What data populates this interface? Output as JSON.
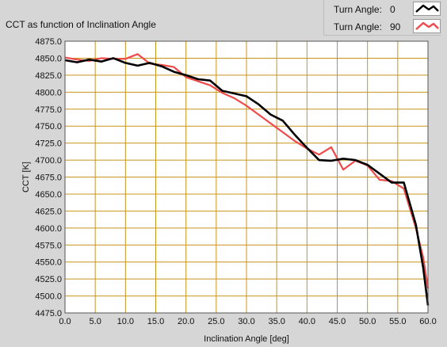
{
  "chart_title": "CCT as function of Inclination Angle",
  "legend": [
    {
      "label": "Turn Angle:",
      "value": "0",
      "color": "#000000"
    },
    {
      "label": "Turn Angle:",
      "value": "90",
      "color": "#ef4a4a"
    }
  ],
  "colors": {
    "plot_bg": "#ffffff",
    "grid": "#c8941e",
    "panel": "#d6d6d6"
  },
  "chart_data": {
    "type": "line",
    "title": "CCT as function of Inclination Angle",
    "xlabel": "Inclination Angle [deg]",
    "ylabel": "CCT [K]",
    "xlim": [
      0,
      60
    ],
    "ylim": [
      4475,
      4875
    ],
    "x_ticks": [
      0,
      5,
      10,
      15,
      20,
      25,
      30,
      35,
      40,
      45,
      50,
      55,
      60
    ],
    "x_tick_labels": [
      "0.0",
      "5.0",
      "10.0",
      "15.0",
      "20.0",
      "25.0",
      "30.0",
      "35.0",
      "40.0",
      "45.0",
      "50.0",
      "55.0",
      "60.0"
    ],
    "y_ticks": [
      4475,
      4500,
      4525,
      4550,
      4575,
      4600,
      4625,
      4650,
      4675,
      4700,
      4725,
      4750,
      4775,
      4800,
      4825,
      4850,
      4875
    ],
    "y_tick_labels": [
      "4475.0",
      "4500.0",
      "4525.0",
      "4550.0",
      "4575.0",
      "4600.0",
      "4625.0",
      "4650.0",
      "4675.0",
      "4700.0",
      "4725.0",
      "4750.0",
      "4775.0",
      "4800.0",
      "4825.0",
      "4850.0",
      "4875.0"
    ],
    "grid": true,
    "legend_position": "top-right",
    "series": [
      {
        "name": "Turn Angle: 0",
        "color": "#000000",
        "points": [
          [
            0,
            4847
          ],
          [
            2,
            4844
          ],
          [
            4,
            4848
          ],
          [
            6,
            4845
          ],
          [
            8,
            4850
          ],
          [
            10,
            4843
          ],
          [
            12,
            4839
          ],
          [
            14,
            4843
          ],
          [
            16,
            4838
          ],
          [
            18,
            4830
          ],
          [
            20,
            4825
          ],
          [
            22,
            4819
          ],
          [
            24,
            4817
          ],
          [
            26,
            4802
          ],
          [
            28,
            4798
          ],
          [
            30,
            4794
          ],
          [
            32,
            4782
          ],
          [
            34,
            4767
          ],
          [
            36,
            4758
          ],
          [
            38,
            4737
          ],
          [
            40,
            4718
          ],
          [
            42,
            4700
          ],
          [
            44,
            4699
          ],
          [
            46,
            4702
          ],
          [
            48,
            4700
          ],
          [
            50,
            4693
          ],
          [
            52,
            4680
          ],
          [
            54,
            4667
          ],
          [
            55,
            4667
          ],
          [
            56,
            4667
          ],
          [
            58,
            4605
          ],
          [
            59.2,
            4542
          ],
          [
            60,
            4486
          ]
        ]
      },
      {
        "name": "Turn Angle: 90",
        "color": "#ef4a4a",
        "points": [
          [
            0,
            4851
          ],
          [
            2,
            4848
          ],
          [
            4,
            4846
          ],
          [
            6,
            4850
          ],
          [
            8,
            4849
          ],
          [
            10,
            4849
          ],
          [
            12,
            4856
          ],
          [
            14,
            4842
          ],
          [
            16,
            4840
          ],
          [
            18,
            4837
          ],
          [
            20,
            4822
          ],
          [
            22,
            4816
          ],
          [
            24,
            4810
          ],
          [
            26,
            4799
          ],
          [
            28,
            4791
          ],
          [
            30,
            4780
          ],
          [
            32,
            4767
          ],
          [
            34,
            4754
          ],
          [
            36,
            4741
          ],
          [
            38,
            4728
          ],
          [
            40,
            4717
          ],
          [
            42,
            4708
          ],
          [
            44,
            4719
          ],
          [
            46,
            4686
          ],
          [
            48,
            4699
          ],
          [
            50,
            4692
          ],
          [
            52,
            4671
          ],
          [
            54,
            4669
          ],
          [
            56,
            4658
          ],
          [
            58,
            4600
          ],
          [
            59.2,
            4557
          ],
          [
            60,
            4511
          ]
        ]
      }
    ]
  }
}
